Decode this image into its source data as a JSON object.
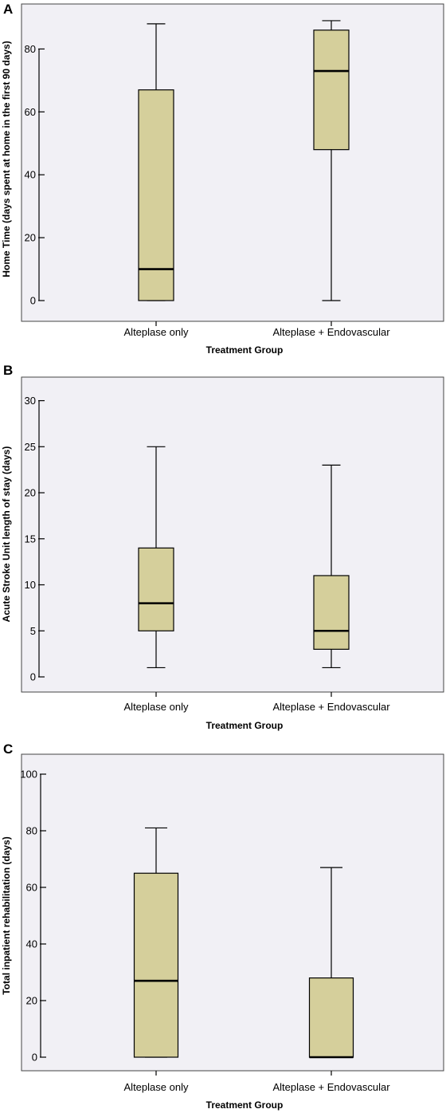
{
  "chart_data": [
    {
      "type": "box",
      "panel_label": "A",
      "ylabel": "Home Time (days spent at home in the first 90 days)",
      "xlabel": "Treatment Group",
      "ylim": [
        0,
        90
      ],
      "yticks": [
        0,
        20,
        40,
        60,
        80
      ],
      "grid": false,
      "categories": [
        "Alteplase only",
        "Alteplase + Endovascular"
      ],
      "boxes": [
        {
          "min": 0,
          "q1": 0,
          "median": 10,
          "q3": 67,
          "max": 88
        },
        {
          "min": 0,
          "q1": 48,
          "median": 73,
          "q3": 86,
          "max": 89
        }
      ]
    },
    {
      "type": "box",
      "panel_label": "B",
      "ylabel": "Acute Stroke Unit length of stay (days)",
      "xlabel": "Treatment Group",
      "ylim": [
        0,
        31
      ],
      "yticks": [
        0,
        5,
        10,
        15,
        20,
        25,
        30
      ],
      "grid": false,
      "categories": [
        "Alteplase only",
        "Alteplase + Endovascular"
      ],
      "boxes": [
        {
          "min": 1,
          "q1": 5,
          "median": 8,
          "q3": 14,
          "max": 25
        },
        {
          "min": 1,
          "q1": 3,
          "median": 5,
          "q3": 11,
          "max": 23
        }
      ]
    },
    {
      "type": "box",
      "panel_label": "C",
      "ylabel": "Total inpatient rehabilitation (days)",
      "xlabel": "Treatment Group",
      "ylim": [
        0,
        100
      ],
      "yticks": [
        0,
        20,
        40,
        60,
        80,
        100
      ],
      "grid": false,
      "categories": [
        "Alteplase only",
        "Alteplase + Endovascular"
      ],
      "boxes": [
        {
          "min": 0,
          "q1": 0,
          "median": 27,
          "q3": 65,
          "max": 81
        },
        {
          "min": 0,
          "q1": 0,
          "median": 0,
          "q3": 28,
          "max": 67
        }
      ]
    }
  ],
  "colors": {
    "box_fill": "#d5cf9b",
    "plot_background": "#f1f0f5"
  }
}
